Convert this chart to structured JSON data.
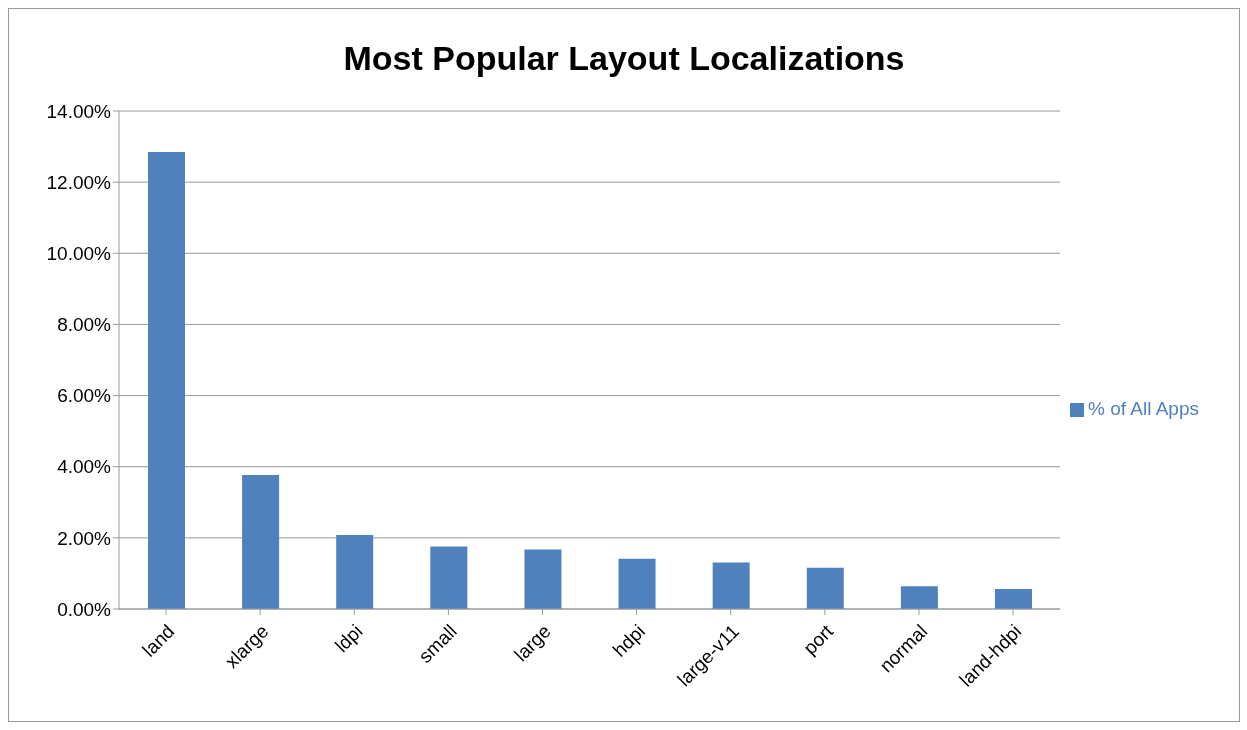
{
  "chart_data": {
    "type": "bar",
    "title": "Most Popular Layout Localizations",
    "categories": [
      "land",
      "xlarge",
      "ldpi",
      "small",
      "large",
      "hdpi",
      "large-v11",
      "port",
      "normal",
      "land-hdpi"
    ],
    "series": [
      {
        "name": "% of All Apps",
        "color": "#4f81bd",
        "values": [
          12.85,
          3.77,
          2.08,
          1.76,
          1.67,
          1.41,
          1.31,
          1.16,
          0.64,
          0.56
        ]
      }
    ],
    "ylim": [
      0,
      14
    ],
    "yticks": [
      {
        "value": 0,
        "label": "0.00%"
      },
      {
        "value": 2,
        "label": "2.00%"
      },
      {
        "value": 4,
        "label": "4.00%"
      },
      {
        "value": 6,
        "label": "6.00%"
      },
      {
        "value": 8,
        "label": "8.00%"
      },
      {
        "value": 10,
        "label": "10.00%"
      },
      {
        "value": 12,
        "label": "12.00%"
      },
      {
        "value": 14,
        "label": "14.00%"
      }
    ],
    "grid": "y",
    "legend": "right"
  }
}
